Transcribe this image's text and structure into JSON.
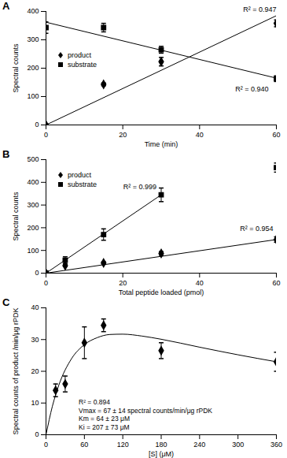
{
  "chart_data": [
    {
      "type": "scatter",
      "title": "A",
      "x_label": "Time (min)",
      "y_label": "Spectral counts",
      "xlim": [
        0,
        60
      ],
      "xticks": [
        0,
        20,
        40,
        60
      ],
      "ylim": [
        0,
        400
      ],
      "yticks": [
        0,
        100,
        200,
        300,
        400
      ],
      "grid": false,
      "legend": "upper left",
      "series": [
        {
          "name": "product",
          "color": "#000000",
          "marker": "diamond",
          "line_style": "solid",
          "x": [
            0,
            15,
            30,
            60
          ],
          "values": [
            0,
            143,
            223,
            358
          ],
          "errors": [
            3,
            5,
            15,
            12
          ],
          "fit": {
            "x": [
              0,
              60
            ],
            "values": [
              0,
              385
            ]
          },
          "annotation": "R² = 0.947"
        },
        {
          "name": "substrate",
          "color": "#000000",
          "marker": "square",
          "line_style": "solid",
          "x": [
            0,
            15,
            30,
            60
          ],
          "values": [
            343,
            343,
            265,
            163
          ],
          "errors": [
            20,
            15,
            12,
            10
          ],
          "fit": {
            "x": [
              0,
              60
            ],
            "values": [
              362,
              165
            ]
          },
          "annotation": "R² = 0.940"
        }
      ]
    },
    {
      "type": "scatter",
      "title": "B",
      "x_label": "Total peptide loaded (pmol)",
      "y_label": "Spectral counts",
      "xlim": [
        0,
        60
      ],
      "xticks": [
        0,
        20,
        40,
        60
      ],
      "ylim": [
        0,
        500
      ],
      "yticks": [
        0,
        100,
        200,
        300,
        400,
        500
      ],
      "grid": false,
      "legend": "upper left",
      "series": [
        {
          "name": "product",
          "color": "#000000",
          "marker": "diamond",
          "line_style": "solid",
          "x": [
            0,
            5,
            15,
            30,
            60
          ],
          "values": [
            0,
            33,
            45,
            87,
            148
          ],
          "errors": [
            0,
            4,
            5,
            8,
            12
          ],
          "fit": {
            "x": [
              0,
              60
            ],
            "values": [
              0,
              148
            ]
          },
          "annotation": "R² = 0.954"
        },
        {
          "name": "substrate",
          "color": "#000000",
          "marker": "square",
          "line_style": "solid",
          "x": [
            0,
            5,
            15,
            30,
            60
          ],
          "values": [
            0,
            57,
            170,
            345,
            465
          ],
          "errors": [
            0,
            15,
            25,
            30,
            20
          ],
          "fit": {
            "x": [
              0,
              30
            ],
            "values": [
              0,
              345
            ]
          },
          "annotation": "R² = 0.999"
        }
      ]
    },
    {
      "type": "scatter",
      "title": "C",
      "x_label": "[S] (μM)",
      "y_label": "Spectral counts of product /min/μg rPDK",
      "xlim": [
        0,
        360
      ],
      "xticks": [
        0,
        60,
        120,
        180,
        240,
        300,
        360
      ],
      "ylim": [
        0,
        40
      ],
      "yticks": [
        0,
        10,
        20,
        30,
        40
      ],
      "grid": false,
      "annotations": [
        "R² = 0.894",
        "Vmax = 67 ± 14 spectral counts/min/μg rPDK",
        "Km = 64 ± 23 μM",
        "Ki = 207 ± 73 μM"
      ],
      "series": [
        {
          "color": "#000000",
          "marker": "diamond",
          "line_style": "solid",
          "x": [
            15,
            30,
            60,
            90,
            180,
            360
          ],
          "values": [
            14,
            16,
            29,
            34.5,
            26.5,
            23
          ],
          "errors": [
            2,
            2.5,
            5,
            2,
            2.5,
            3
          ],
          "fit": {
            "x": [
              0,
              10,
              20,
              40,
              60,
              80,
              100,
              120,
              150,
              180,
              240,
              300,
              360
            ],
            "values": [
              0,
              9.0,
              15.6,
              24.0,
              28.4,
              30.6,
              31.6,
              31.7,
              31.1,
              30.1,
              27.6,
              25.2,
              23.0
            ]
          }
        }
      ]
    }
  ]
}
